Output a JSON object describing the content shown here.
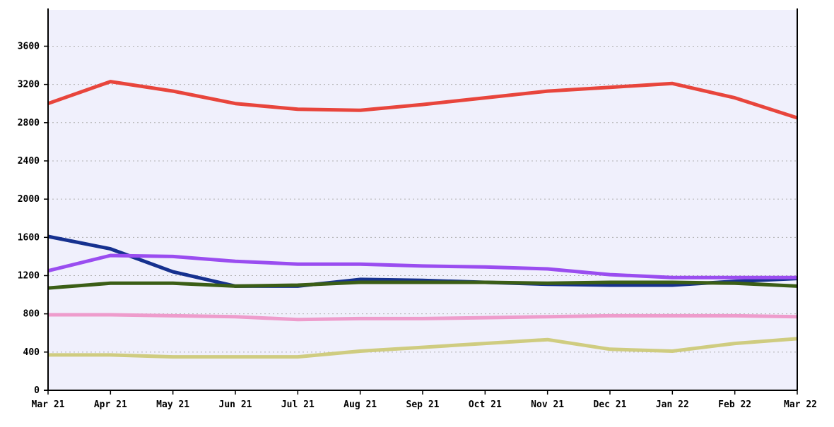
{
  "chart_data": {
    "type": "line",
    "title": "",
    "xlabel": "",
    "ylabel": "",
    "categories": [
      "Mar 21",
      "Apr 21",
      "May 21",
      "Jun 21",
      "Jul 21",
      "Aug 21",
      "Sep 21",
      "Oct 21",
      "Nov 21",
      "Dec 21",
      "Jan 22",
      "Feb 22",
      "Mar 22"
    ],
    "yticks": [
      0,
      400,
      800,
      1200,
      1600,
      2000,
      2400,
      2800,
      3200,
      3600
    ],
    "ylim": [
      0,
      3980
    ],
    "grid": true,
    "legend": "none",
    "colors": {
      "plot_background": "#f0f0fc",
      "gridline": "#b0b0b0",
      "axis": "#000000"
    },
    "series": [
      {
        "color": "#e8453c",
        "values": [
          3000,
          3230,
          3130,
          3000,
          2940,
          2930,
          2990,
          3060,
          3130,
          3170,
          3210,
          3060,
          2850
        ]
      },
      {
        "color": "#16318f",
        "values": [
          1610,
          1480,
          1240,
          1090,
          1090,
          1160,
          1150,
          1130,
          1110,
          1100,
          1100,
          1140,
          1170
        ]
      },
      {
        "color": "#9a4df0",
        "values": [
          1250,
          1410,
          1400,
          1350,
          1320,
          1320,
          1300,
          1290,
          1270,
          1210,
          1180,
          1180,
          1180
        ]
      },
      {
        "color": "#3b5e16",
        "values": [
          1070,
          1120,
          1120,
          1090,
          1100,
          1130,
          1130,
          1130,
          1120,
          1130,
          1130,
          1120,
          1090
        ]
      },
      {
        "color": "#ee9ccc",
        "values": [
          790,
          790,
          780,
          770,
          740,
          750,
          750,
          760,
          770,
          780,
          780,
          780,
          770
        ]
      },
      {
        "color": "#cfcc80",
        "values": [
          370,
          370,
          350,
          350,
          350,
          410,
          450,
          490,
          530,
          430,
          410,
          490,
          540
        ]
      }
    ]
  }
}
